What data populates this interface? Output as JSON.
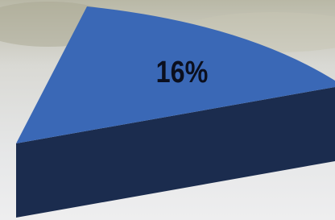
{
  "chart_data": {
    "type": "pie",
    "values": [
      16
    ],
    "value_labels": [
      "16%"
    ],
    "color": "#3a68b6",
    "side_color": "#1b2c4e"
  }
}
